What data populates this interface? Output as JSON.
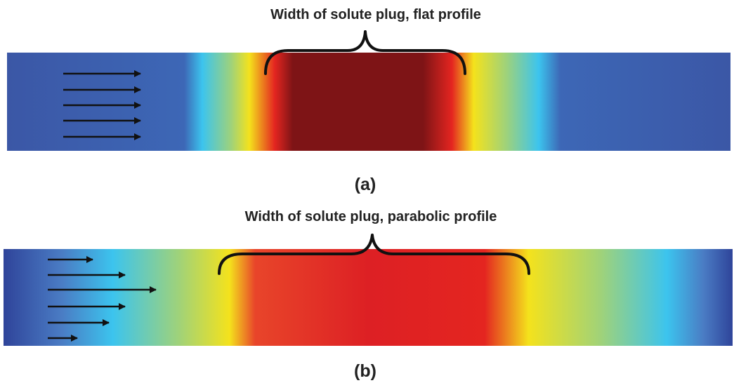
{
  "panels": [
    {
      "title": "Width of solute plug, flat profile",
      "label": "(a)"
    },
    {
      "title": "Width of solute plug, parabolic profile",
      "label": "(b)"
    }
  ]
}
